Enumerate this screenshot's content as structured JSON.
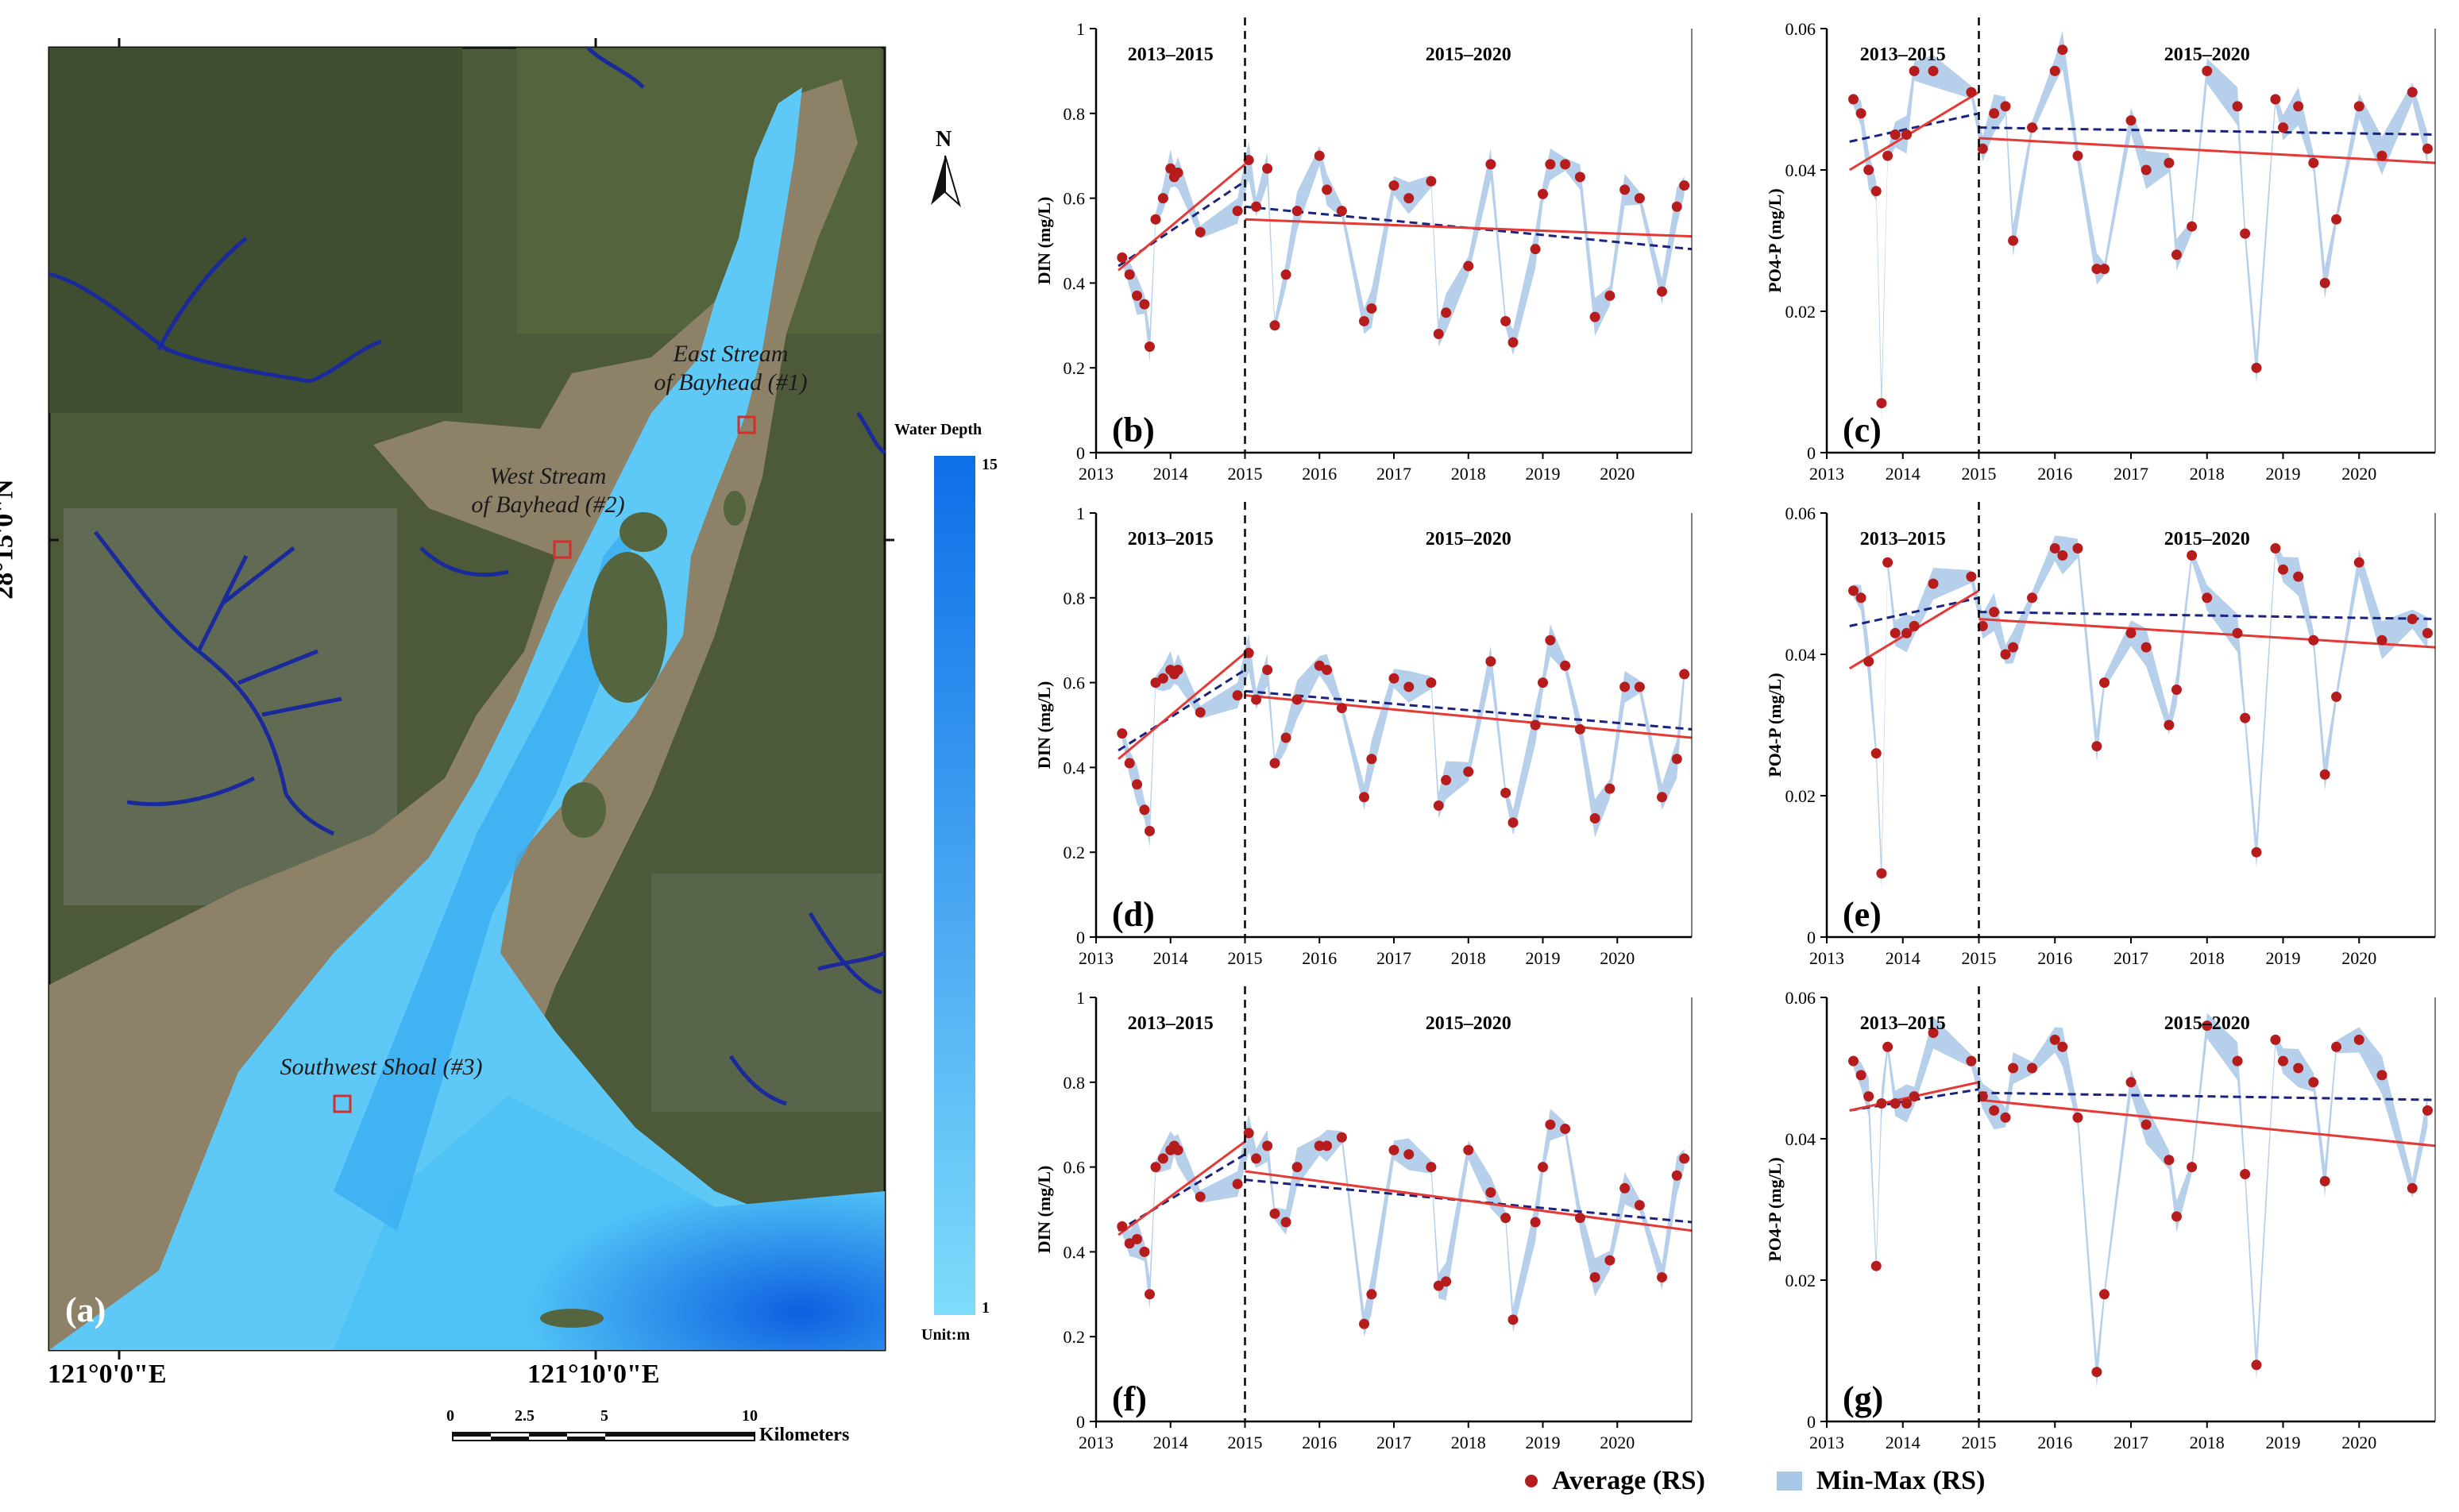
{
  "map": {
    "panel_label": "(a)",
    "lat_label": "28°15'0\"N",
    "lon_label_left": "121°0'0\"E",
    "lon_label_right": "121°10'0\"E",
    "north_label": "N",
    "sites": [
      {
        "label_line1": "East Stream",
        "label_line2": "of Bayhead (#1)"
      },
      {
        "label_line1": "West Stream",
        "label_line2": "of Bayhead (#2)"
      },
      {
        "label_line1": "Southwest Shoal (#3)",
        "label_line2": ""
      }
    ],
    "legend": {
      "title": "Water Depth",
      "max": "15",
      "min": "1",
      "unit": "Unit:m",
      "color_deep": "#0d6ee8",
      "color_shallow": "#7fdcfb"
    },
    "scale_bar": {
      "ticks": [
        "0",
        "2.5",
        "5",
        "10"
      ],
      "unit": "Kilometers"
    },
    "colors": {
      "river": "#1a2a9a",
      "site_box": "#d32f2f",
      "land": "#4c5a3a",
      "shoal": "#8d8268"
    }
  },
  "chart_data": [
    {
      "panel": "(b)",
      "type": "line",
      "ylabel": "DIN (mg/L)",
      "ylim": [
        0,
        1
      ],
      "yticks": [
        "0",
        "0.2",
        "0.4",
        "0.6",
        "0.8",
        "1"
      ],
      "xticks": [
        "2013",
        "2014",
        "2015",
        "2016",
        "2017",
        "2018",
        "2019",
        "2020"
      ],
      "xlim": [
        2013,
        2021
      ],
      "period_labels": [
        "2013–2015",
        "2015–2020"
      ],
      "series": [
        {
          "name": "Average (RS)",
          "x": [
            2013.35,
            2013.45,
            2013.55,
            2013.65,
            2013.72,
            2013.8,
            2013.9,
            2014.0,
            2014.05,
            2014.1,
            2014.4,
            2014.9,
            2015.05,
            2015.15,
            2015.3,
            2015.4,
            2015.55,
            2015.7,
            2016.0,
            2016.1,
            2016.3,
            2016.6,
            2016.7,
            2017.0,
            2017.2,
            2017.5,
            2017.6,
            2017.7,
            2018.0,
            2018.3,
            2018.5,
            2018.6,
            2018.9,
            2019.0,
            2019.1,
            2019.3,
            2019.5,
            2019.7,
            2019.9,
            2020.1,
            2020.3,
            2020.6,
            2020.8,
            2020.9
          ],
          "y": [
            0.46,
            0.42,
            0.37,
            0.35,
            0.25,
            0.55,
            0.6,
            0.67,
            0.65,
            0.66,
            0.52,
            0.57,
            0.69,
            0.58,
            0.67,
            0.3,
            0.42,
            0.57,
            0.7,
            0.62,
            0.57,
            0.31,
            0.34,
            0.63,
            0.6,
            0.64,
            0.28,
            0.33,
            0.44,
            0.68,
            0.31,
            0.26,
            0.48,
            0.61,
            0.68,
            0.68,
            0.65,
            0.32,
            0.37,
            0.62,
            0.6,
            0.38,
            0.58,
            0.63
          ]
        }
      ],
      "trend_red_early": [
        [
          2013.3,
          0.43
        ],
        [
          2015.0,
          0.68
        ]
      ],
      "trend_red_late": [
        [
          2015.0,
          0.55
        ],
        [
          2021.0,
          0.51
        ]
      ],
      "trend_blue_early": [
        [
          2013.3,
          0.44
        ],
        [
          2015.0,
          0.64
        ]
      ],
      "trend_blue_late": [
        [
          2015.0,
          0.58
        ],
        [
          2021.0,
          0.48
        ]
      ]
    },
    {
      "panel": "(c)",
      "type": "line",
      "ylabel": "PO4-P (mg/L)",
      "ylim": [
        0,
        0.06
      ],
      "yticks": [
        "0",
        "0.02",
        "0.04",
        "0.06"
      ],
      "xticks": [
        "2013",
        "2014",
        "2015",
        "2016",
        "2017",
        "2018",
        "2019",
        "2020"
      ],
      "xlim": [
        2013,
        2021
      ],
      "period_labels": [
        "2013–2015",
        "2015–2020"
      ],
      "series": [
        {
          "name": "Average (RS)",
          "x": [
            2013.35,
            2013.45,
            2013.55,
            2013.65,
            2013.72,
            2013.8,
            2013.9,
            2014.05,
            2014.15,
            2014.4,
            2014.9,
            2015.05,
            2015.2,
            2015.35,
            2015.45,
            2015.7,
            2016.0,
            2016.1,
            2016.3,
            2016.55,
            2016.65,
            2017.0,
            2017.2,
            2017.5,
            2017.6,
            2017.8,
            2018.0,
            2018.4,
            2018.5,
            2018.65,
            2018.9,
            2019.0,
            2019.2,
            2019.4,
            2019.55,
            2019.7,
            2020.0,
            2020.3,
            2020.7,
            2020.9
          ],
          "y": [
            0.05,
            0.048,
            0.04,
            0.037,
            0.007,
            0.042,
            0.045,
            0.045,
            0.054,
            0.054,
            0.051,
            0.043,
            0.048,
            0.049,
            0.03,
            0.046,
            0.054,
            0.057,
            0.042,
            0.026,
            0.026,
            0.047,
            0.04,
            0.041,
            0.028,
            0.032,
            0.054,
            0.049,
            0.031,
            0.012,
            0.05,
            0.046,
            0.049,
            0.041,
            0.024,
            0.033,
            0.049,
            0.042,
            0.051,
            0.043
          ]
        }
      ],
      "trend_red_early": [
        [
          2013.3,
          0.04
        ],
        [
          2015.0,
          0.051
        ]
      ],
      "trend_red_late": [
        [
          2015.0,
          0.0445
        ],
        [
          2021.0,
          0.041
        ]
      ],
      "trend_blue_early": [
        [
          2013.3,
          0.044
        ],
        [
          2015.0,
          0.048
        ]
      ],
      "trend_blue_late": [
        [
          2015.0,
          0.046
        ],
        [
          2021.0,
          0.045
        ]
      ]
    },
    {
      "panel": "(d)",
      "type": "line",
      "ylabel": "DIN (mg/L)",
      "ylim": [
        0,
        1
      ],
      "yticks": [
        "0",
        "0.2",
        "0.4",
        "0.6",
        "0.8",
        "1"
      ],
      "xticks": [
        "2013",
        "2014",
        "2015",
        "2016",
        "2017",
        "2018",
        "2019",
        "2020"
      ],
      "xlim": [
        2013,
        2021
      ],
      "period_labels": [
        "2013–2015",
        "2015–2020"
      ],
      "series": [
        {
          "name": "Average (RS)",
          "x": [
            2013.35,
            2013.45,
            2013.55,
            2013.65,
            2013.72,
            2013.8,
            2013.9,
            2014.0,
            2014.05,
            2014.1,
            2014.4,
            2014.9,
            2015.05,
            2015.15,
            2015.3,
            2015.4,
            2015.55,
            2015.7,
            2016.0,
            2016.1,
            2016.3,
            2016.6,
            2016.7,
            2017.0,
            2017.2,
            2017.5,
            2017.6,
            2017.7,
            2018.0,
            2018.3,
            2018.5,
            2018.6,
            2018.9,
            2019.0,
            2019.1,
            2019.3,
            2019.5,
            2019.7,
            2019.9,
            2020.1,
            2020.3,
            2020.6,
            2020.8,
            2020.9
          ],
          "y": [
            0.48,
            0.41,
            0.36,
            0.3,
            0.25,
            0.6,
            0.61,
            0.63,
            0.62,
            0.63,
            0.53,
            0.57,
            0.67,
            0.56,
            0.63,
            0.41,
            0.47,
            0.56,
            0.64,
            0.63,
            0.54,
            0.33,
            0.42,
            0.61,
            0.59,
            0.6,
            0.31,
            0.37,
            0.39,
            0.65,
            0.34,
            0.27,
            0.5,
            0.6,
            0.7,
            0.64,
            0.49,
            0.28,
            0.35,
            0.59,
            0.59,
            0.33,
            0.42,
            0.62
          ]
        }
      ],
      "trend_red_early": [
        [
          2013.3,
          0.42
        ],
        [
          2015.0,
          0.67
        ]
      ],
      "trend_red_late": [
        [
          2015.0,
          0.57
        ],
        [
          2021.0,
          0.47
        ]
      ],
      "trend_blue_early": [
        [
          2013.3,
          0.44
        ],
        [
          2015.0,
          0.63
        ]
      ],
      "trend_blue_late": [
        [
          2015.0,
          0.58
        ],
        [
          2021.0,
          0.49
        ]
      ]
    },
    {
      "panel": "(e)",
      "type": "line",
      "ylabel": "PO4-P (mg/L)",
      "ylim": [
        0,
        0.06
      ],
      "yticks": [
        "0",
        "0.02",
        "0.04",
        "0.06"
      ],
      "xticks": [
        "2013",
        "2014",
        "2015",
        "2016",
        "2017",
        "2018",
        "2019",
        "2020"
      ],
      "xlim": [
        2013,
        2021
      ],
      "period_labels": [
        "2013–2015",
        "2015–2020"
      ],
      "series": [
        {
          "name": "Average (RS)",
          "x": [
            2013.35,
            2013.45,
            2013.55,
            2013.65,
            2013.72,
            2013.8,
            2013.9,
            2014.05,
            2014.15,
            2014.4,
            2014.9,
            2015.05,
            2015.2,
            2015.35,
            2015.45,
            2015.7,
            2016.0,
            2016.1,
            2016.3,
            2016.55,
            2016.65,
            2017.0,
            2017.2,
            2017.5,
            2017.6,
            2017.8,
            2018.0,
            2018.4,
            2018.5,
            2018.65,
            2018.9,
            2019.0,
            2019.2,
            2019.4,
            2019.55,
            2019.7,
            2020.0,
            2020.3,
            2020.7,
            2020.9
          ],
          "y": [
            0.049,
            0.048,
            0.039,
            0.026,
            0.009,
            0.053,
            0.043,
            0.043,
            0.044,
            0.05,
            0.051,
            0.044,
            0.046,
            0.04,
            0.041,
            0.048,
            0.055,
            0.054,
            0.055,
            0.027,
            0.036,
            0.043,
            0.041,
            0.03,
            0.035,
            0.054,
            0.048,
            0.043,
            0.031,
            0.012,
            0.055,
            0.052,
            0.051,
            0.042,
            0.023,
            0.034,
            0.053,
            0.042,
            0.045,
            0.043
          ]
        }
      ],
      "trend_red_early": [
        [
          2013.3,
          0.038
        ],
        [
          2015.0,
          0.049
        ]
      ],
      "trend_red_late": [
        [
          2015.0,
          0.045
        ],
        [
          2021.0,
          0.041
        ]
      ],
      "trend_blue_early": [
        [
          2013.3,
          0.044
        ],
        [
          2015.0,
          0.048
        ]
      ],
      "trend_blue_late": [
        [
          2015.0,
          0.046
        ],
        [
          2021.0,
          0.045
        ]
      ]
    },
    {
      "panel": "(f)",
      "type": "line",
      "ylabel": "DIN (mg/L)",
      "ylim": [
        0,
        1
      ],
      "yticks": [
        "0",
        "0.2",
        "0.4",
        "0.6",
        "0.8",
        "1"
      ],
      "xticks": [
        "2013",
        "2014",
        "2015",
        "2016",
        "2017",
        "2018",
        "2019",
        "2020"
      ],
      "xlim": [
        2013,
        2021
      ],
      "period_labels": [
        "2013–2015",
        "2015–2020"
      ],
      "series": [
        {
          "name": "Average (RS)",
          "x": [
            2013.35,
            2013.45,
            2013.55,
            2013.65,
            2013.72,
            2013.8,
            2013.9,
            2014.0,
            2014.05,
            2014.1,
            2014.4,
            2014.9,
            2015.05,
            2015.15,
            2015.3,
            2015.4,
            2015.55,
            2015.7,
            2016.0,
            2016.1,
            2016.3,
            2016.6,
            2016.7,
            2017.0,
            2017.2,
            2017.5,
            2017.6,
            2017.7,
            2018.0,
            2018.3,
            2018.5,
            2018.6,
            2018.9,
            2019.0,
            2019.1,
            2019.3,
            2019.5,
            2019.7,
            2019.9,
            2020.1,
            2020.3,
            2020.6,
            2020.8,
            2020.9
          ],
          "y": [
            0.46,
            0.42,
            0.43,
            0.4,
            0.3,
            0.6,
            0.62,
            0.64,
            0.65,
            0.64,
            0.53,
            0.56,
            0.68,
            0.62,
            0.65,
            0.49,
            0.47,
            0.6,
            0.65,
            0.65,
            0.67,
            0.23,
            0.3,
            0.64,
            0.63,
            0.6,
            0.32,
            0.33,
            0.64,
            0.54,
            0.48,
            0.24,
            0.47,
            0.6,
            0.7,
            0.69,
            0.48,
            0.34,
            0.38,
            0.55,
            0.51,
            0.34,
            0.58,
            0.62
          ]
        }
      ],
      "trend_red_early": [
        [
          2013.3,
          0.44
        ],
        [
          2015.0,
          0.66
        ]
      ],
      "trend_red_late": [
        [
          2015.0,
          0.59
        ],
        [
          2021.0,
          0.45
        ]
      ],
      "trend_blue_early": [
        [
          2013.3,
          0.45
        ],
        [
          2015.0,
          0.63
        ]
      ],
      "trend_blue_late": [
        [
          2015.0,
          0.57
        ],
        [
          2021.0,
          0.47
        ]
      ]
    },
    {
      "panel": "(g)",
      "type": "line",
      "ylabel": "PO4-P (mg/L)",
      "ylim": [
        0,
        0.06
      ],
      "yticks": [
        "0",
        "0.02",
        "0.04",
        "0.06"
      ],
      "xticks": [
        "2013",
        "2014",
        "2015",
        "2016",
        "2017",
        "2018",
        "2019",
        "2020"
      ],
      "xlim": [
        2013,
        2021
      ],
      "period_labels": [
        "2013–2015",
        "2015–2020"
      ],
      "series": [
        {
          "name": "Average (RS)",
          "x": [
            2013.35,
            2013.45,
            2013.55,
            2013.65,
            2013.72,
            2013.8,
            2013.9,
            2014.05,
            2014.15,
            2014.4,
            2014.9,
            2015.05,
            2015.2,
            2015.35,
            2015.45,
            2015.7,
            2016.0,
            2016.1,
            2016.3,
            2016.55,
            2016.65,
            2017.0,
            2017.2,
            2017.5,
            2017.6,
            2017.8,
            2018.0,
            2018.4,
            2018.5,
            2018.65,
            2018.9,
            2019.0,
            2019.2,
            2019.4,
            2019.55,
            2019.7,
            2020.0,
            2020.3,
            2020.7,
            2020.9
          ],
          "y": [
            0.051,
            0.049,
            0.046,
            0.022,
            0.045,
            0.053,
            0.045,
            0.045,
            0.046,
            0.055,
            0.051,
            0.046,
            0.044,
            0.043,
            0.05,
            0.05,
            0.054,
            0.053,
            0.043,
            0.007,
            0.018,
            0.048,
            0.042,
            0.037,
            0.029,
            0.036,
            0.056,
            0.051,
            0.035,
            0.008,
            0.054,
            0.051,
            0.05,
            0.048,
            0.034,
            0.053,
            0.054,
            0.049,
            0.033,
            0.044
          ]
        }
      ],
      "trend_red_early": [
        [
          2013.3,
          0.044
        ],
        [
          2015.0,
          0.048
        ]
      ],
      "trend_red_late": [
        [
          2015.0,
          0.0455
        ],
        [
          2021.0,
          0.039
        ]
      ],
      "trend_blue_early": [
        [
          2013.3,
          0.044
        ],
        [
          2015.0,
          0.047
        ]
      ],
      "trend_blue_late": [
        [
          2015.0,
          0.0465
        ],
        [
          2021.0,
          0.0455
        ]
      ]
    }
  ],
  "legend": {
    "average_label": "Average (RS)",
    "minmax_label": "Min-Max (RS)",
    "colors": {
      "point": "#b71c1c",
      "band": "#a9c7e6",
      "trend_red": "#e53935",
      "trend_blue": "#1a237e"
    }
  }
}
